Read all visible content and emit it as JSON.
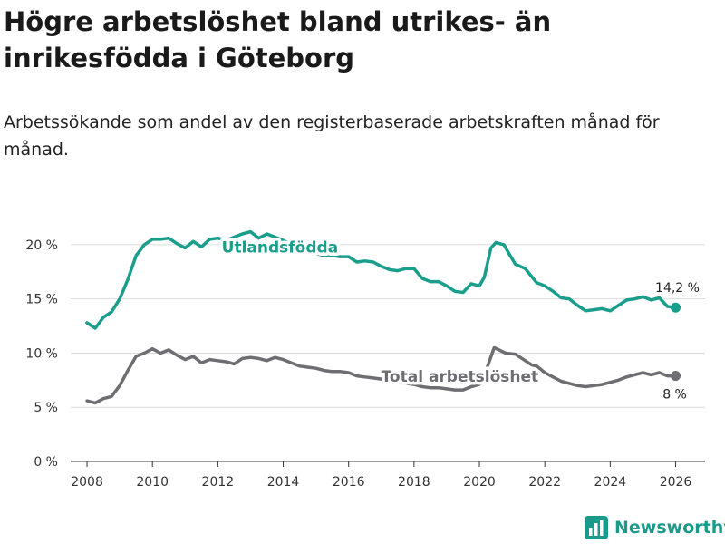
{
  "header": {
    "title": "Högre arbetslöshet bland utrikes- än inrikesfödda i Göteborg",
    "subtitle": "Arbetssökande som andel av den registerbaserade arbetskraften månad för månad."
  },
  "brand": {
    "name": "Newsworthy",
    "icon": "bar-chart-logo-icon",
    "color": "#1a9a8a"
  },
  "chart_data": {
    "type": "line",
    "title": "Högre arbetslöshet bland utrikes- än inrikesfödda i Göteborg",
    "xlabel": "",
    "ylabel": "",
    "xlim": [
      2007.5,
      2026.9
    ],
    "ylim": [
      0,
      22
    ],
    "x_ticks": [
      2008,
      2010,
      2012,
      2014,
      2016,
      2018,
      2020,
      2022,
      2024,
      2026
    ],
    "x_tick_labels": [
      "2008",
      "2010",
      "2012",
      "2014",
      "2016",
      "2018",
      "2020",
      "2022",
      "2024",
      "2026"
    ],
    "y_ticks": [
      0,
      5,
      10,
      15,
      20
    ],
    "y_tick_labels": [
      "0 %",
      "5 %",
      "10 %",
      "15 %",
      "20 %"
    ],
    "grid": true,
    "series": [
      {
        "name": "Utlandsfödda",
        "color": "#1a9e8c",
        "end_label": "14,2 %",
        "points": [
          [
            2008.0,
            12.8
          ],
          [
            2008.25,
            12.3
          ],
          [
            2008.5,
            13.3
          ],
          [
            2008.75,
            13.8
          ],
          [
            2009.0,
            15.0
          ],
          [
            2009.25,
            16.8
          ],
          [
            2009.5,
            19.0
          ],
          [
            2009.75,
            20.0
          ],
          [
            2010.0,
            20.5
          ],
          [
            2010.25,
            20.5
          ],
          [
            2010.5,
            20.6
          ],
          [
            2010.75,
            20.1
          ],
          [
            2011.0,
            19.7
          ],
          [
            2011.25,
            20.3
          ],
          [
            2011.5,
            19.8
          ],
          [
            2011.75,
            20.5
          ],
          [
            2012.0,
            20.6
          ],
          [
            2012.25,
            20.4
          ],
          [
            2012.5,
            20.7
          ],
          [
            2012.75,
            21.0
          ],
          [
            2013.0,
            21.2
          ],
          [
            2013.25,
            20.6
          ],
          [
            2013.5,
            21.0
          ],
          [
            2013.75,
            20.7
          ],
          [
            2014.0,
            20.4
          ],
          [
            2014.25,
            20.0
          ],
          [
            2014.5,
            19.7
          ],
          [
            2014.75,
            19.4
          ],
          [
            2015.0,
            19.2
          ],
          [
            2015.25,
            19.0
          ],
          [
            2015.5,
            19.0
          ],
          [
            2015.75,
            18.9
          ],
          [
            2016.0,
            18.9
          ],
          [
            2016.25,
            18.4
          ],
          [
            2016.5,
            18.5
          ],
          [
            2016.75,
            18.4
          ],
          [
            2017.0,
            18.0
          ],
          [
            2017.25,
            17.7
          ],
          [
            2017.5,
            17.6
          ],
          [
            2017.75,
            17.8
          ],
          [
            2018.0,
            17.8
          ],
          [
            2018.25,
            16.9
          ],
          [
            2018.5,
            16.6
          ],
          [
            2018.75,
            16.6
          ],
          [
            2019.0,
            16.2
          ],
          [
            2019.25,
            15.7
          ],
          [
            2019.5,
            15.6
          ],
          [
            2019.75,
            16.4
          ],
          [
            2020.0,
            16.2
          ],
          [
            2020.15,
            17.0
          ],
          [
            2020.35,
            19.7
          ],
          [
            2020.5,
            20.2
          ],
          [
            2020.75,
            20.0
          ],
          [
            2020.9,
            19.2
          ],
          [
            2021.1,
            18.2
          ],
          [
            2021.4,
            17.8
          ],
          [
            2021.75,
            16.5
          ],
          [
            2022.0,
            16.2
          ],
          [
            2022.25,
            15.7
          ],
          [
            2022.5,
            15.1
          ],
          [
            2022.75,
            15.0
          ],
          [
            2023.0,
            14.4
          ],
          [
            2023.25,
            13.9
          ],
          [
            2023.5,
            14.0
          ],
          [
            2023.75,
            14.1
          ],
          [
            2024.0,
            13.9
          ],
          [
            2024.25,
            14.4
          ],
          [
            2024.5,
            14.9
          ],
          [
            2024.75,
            15.0
          ],
          [
            2025.0,
            15.2
          ],
          [
            2025.25,
            14.9
          ],
          [
            2025.5,
            15.1
          ],
          [
            2025.75,
            14.3
          ],
          [
            2026.0,
            14.2
          ]
        ]
      },
      {
        "name": "Total arbetslöshet",
        "color": "#6e6e72",
        "end_label": "8 %",
        "points": [
          [
            2008.0,
            5.6
          ],
          [
            2008.25,
            5.4
          ],
          [
            2008.5,
            5.8
          ],
          [
            2008.75,
            6.0
          ],
          [
            2009.0,
            7.0
          ],
          [
            2009.25,
            8.4
          ],
          [
            2009.5,
            9.7
          ],
          [
            2009.75,
            10.0
          ],
          [
            2010.0,
            10.4
          ],
          [
            2010.25,
            10.0
          ],
          [
            2010.5,
            10.3
          ],
          [
            2010.75,
            9.8
          ],
          [
            2011.0,
            9.4
          ],
          [
            2011.25,
            9.7
          ],
          [
            2011.5,
            9.1
          ],
          [
            2011.75,
            9.4
          ],
          [
            2012.0,
            9.3
          ],
          [
            2012.25,
            9.2
          ],
          [
            2012.5,
            9.0
          ],
          [
            2012.75,
            9.5
          ],
          [
            2013.0,
            9.6
          ],
          [
            2013.25,
            9.5
          ],
          [
            2013.5,
            9.3
          ],
          [
            2013.75,
            9.6
          ],
          [
            2014.0,
            9.4
          ],
          [
            2014.25,
            9.1
          ],
          [
            2014.5,
            8.8
          ],
          [
            2014.75,
            8.7
          ],
          [
            2015.0,
            8.6
          ],
          [
            2015.25,
            8.4
          ],
          [
            2015.5,
            8.3
          ],
          [
            2015.75,
            8.3
          ],
          [
            2016.0,
            8.2
          ],
          [
            2016.25,
            7.9
          ],
          [
            2016.5,
            7.8
          ],
          [
            2016.75,
            7.7
          ],
          [
            2017.0,
            7.6
          ],
          [
            2017.25,
            7.5
          ],
          [
            2017.5,
            7.3
          ],
          [
            2017.75,
            7.2
          ],
          [
            2018.0,
            7.1
          ],
          [
            2018.25,
            6.9
          ],
          [
            2018.5,
            6.8
          ],
          [
            2018.75,
            6.8
          ],
          [
            2019.0,
            6.7
          ],
          [
            2019.25,
            6.6
          ],
          [
            2019.5,
            6.6
          ],
          [
            2019.75,
            6.9
          ],
          [
            2020.0,
            7.1
          ],
          [
            2020.25,
            8.8
          ],
          [
            2020.45,
            10.5
          ],
          [
            2020.6,
            10.3
          ],
          [
            2020.8,
            10.0
          ],
          [
            2021.1,
            9.9
          ],
          [
            2021.35,
            9.4
          ],
          [
            2021.6,
            8.9
          ],
          [
            2021.75,
            8.8
          ],
          [
            2022.0,
            8.2
          ],
          [
            2022.25,
            7.8
          ],
          [
            2022.5,
            7.4
          ],
          [
            2022.75,
            7.2
          ],
          [
            2023.0,
            7.0
          ],
          [
            2023.25,
            6.9
          ],
          [
            2023.5,
            7.0
          ],
          [
            2023.75,
            7.1
          ],
          [
            2024.0,
            7.3
          ],
          [
            2024.25,
            7.5
          ],
          [
            2024.5,
            7.8
          ],
          [
            2024.75,
            8.0
          ],
          [
            2025.0,
            8.2
          ],
          [
            2025.25,
            8.0
          ],
          [
            2025.5,
            8.2
          ],
          [
            2025.75,
            7.9
          ],
          [
            2026.0,
            7.9
          ]
        ]
      }
    ]
  }
}
